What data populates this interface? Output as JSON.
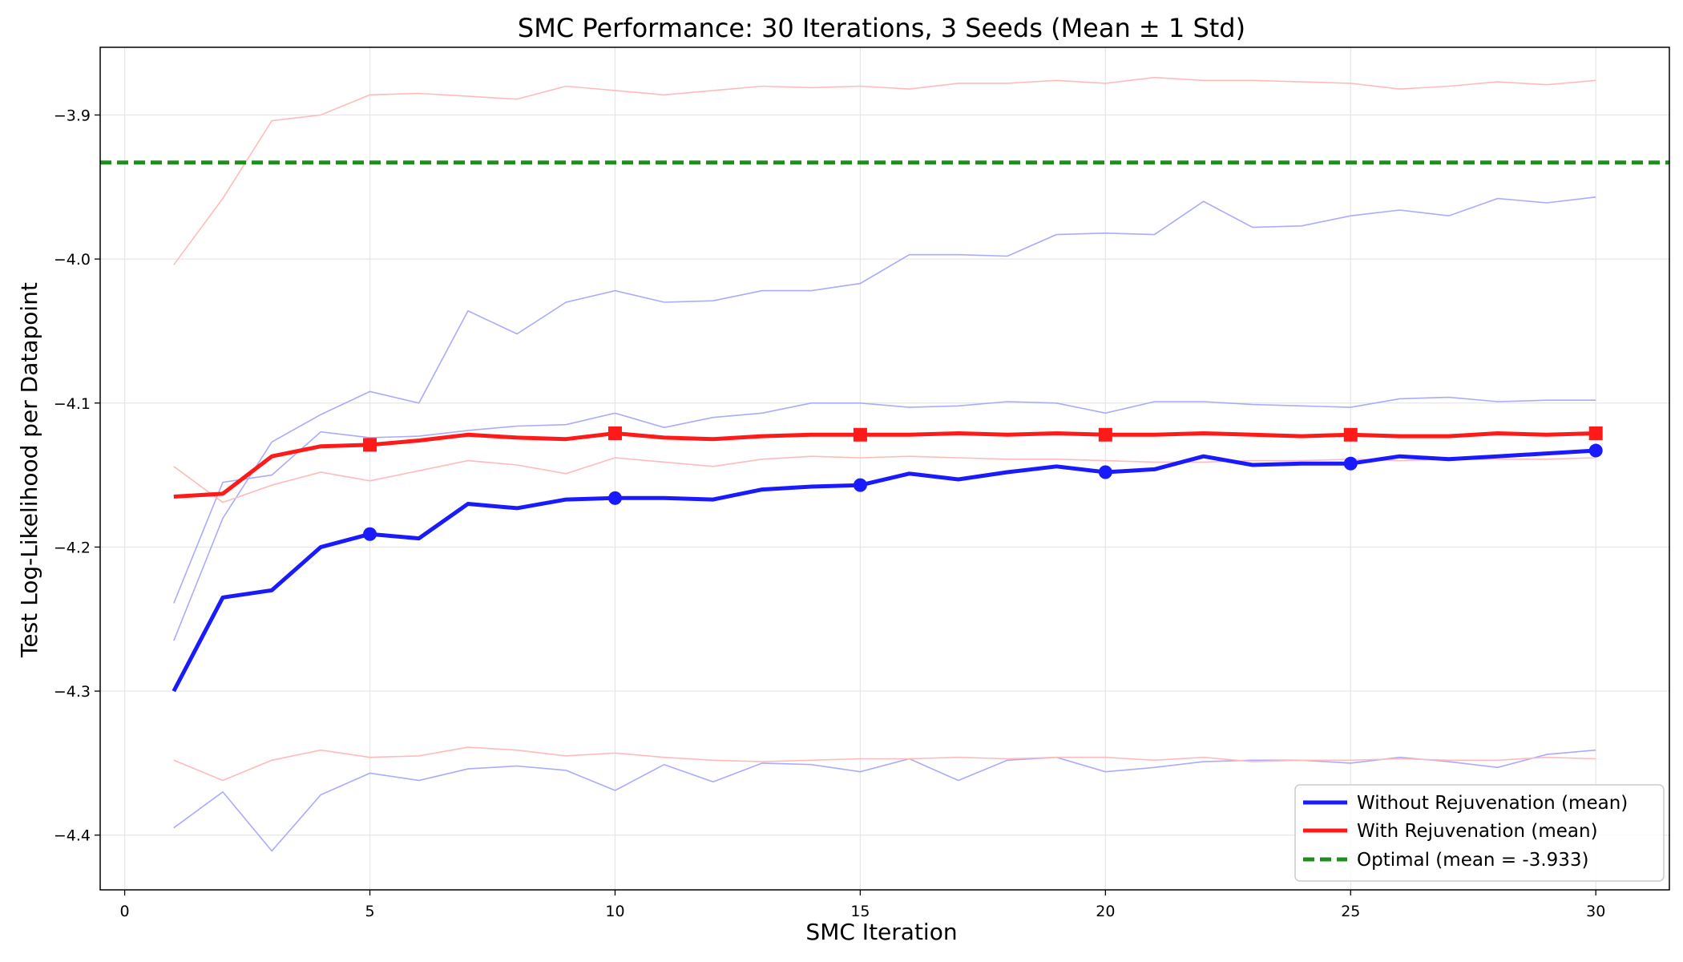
{
  "chart_data": {
    "type": "line",
    "title": "SMC Performance: 30 Iterations, 3 Seeds (Mean ± 1 Std)",
    "xlabel": "SMC Iteration",
    "ylabel": "Test Log-Likelihood per Datapoint",
    "xlim": [
      -0.5,
      31.5
    ],
    "ylim": [
      -4.438,
      -3.853
    ],
    "xticks": [
      0,
      5,
      10,
      15,
      20,
      25,
      30
    ],
    "xtick_labels": [
      "0",
      "5",
      "10",
      "15",
      "20",
      "25",
      "30"
    ],
    "yticks": [
      -4.4,
      -4.3,
      -4.2,
      -4.1,
      -4.0,
      -3.9
    ],
    "ytick_labels": [
      "−4.4",
      "−4.3",
      "−4.2",
      "−4.1",
      "−4.0",
      "−3.9"
    ],
    "grid": true,
    "legend_position": "lower-right",
    "x": [
      1,
      2,
      3,
      4,
      5,
      6,
      7,
      8,
      9,
      10,
      11,
      12,
      13,
      14,
      15,
      16,
      17,
      18,
      19,
      20,
      21,
      22,
      23,
      24,
      25,
      26,
      27,
      28,
      29,
      30
    ],
    "series": [
      {
        "name": "Without Rejuvenation (mean)",
        "color": "#1a1aff",
        "style": "solid",
        "values": [
          -4.3,
          -4.235,
          -4.23,
          -4.2,
          -4.191,
          -4.194,
          -4.17,
          -4.173,
          -4.167,
          -4.166,
          -4.166,
          -4.167,
          -4.16,
          -4.158,
          -4.157,
          -4.149,
          -4.153,
          -4.148,
          -4.144,
          -4.148,
          -4.146,
          -4.137,
          -4.143,
          -4.142,
          -4.142,
          -4.137,
          -4.139,
          -4.137,
          -4.135,
          -4.133
        ],
        "markers_every": 5,
        "marker": "circle"
      },
      {
        "name": "With Rejuvenation (mean)",
        "color": "#ff1a1a",
        "style": "solid",
        "values": [
          -4.165,
          -4.163,
          -4.137,
          -4.13,
          -4.129,
          -4.126,
          -4.122,
          -4.124,
          -4.125,
          -4.121,
          -4.124,
          -4.125,
          -4.123,
          -4.122,
          -4.122,
          -4.122,
          -4.121,
          -4.122,
          -4.121,
          -4.122,
          -4.122,
          -4.121,
          -4.122,
          -4.123,
          -4.122,
          -4.123,
          -4.123,
          -4.121,
          -4.122,
          -4.121
        ],
        "markers_every": 5,
        "marker": "square"
      }
    ],
    "bands": [
      {
        "series": "Without Rejuvenation (mean)",
        "color": "#aaaaff",
        "seeds": [
          [
            -4.239,
            -4.155,
            -4.15,
            -4.12,
            -4.124,
            -4.123,
            -4.119,
            -4.116,
            -4.115,
            -4.107,
            -4.117,
            -4.11,
            -4.107,
            -4.1,
            -4.1,
            -4.103,
            -4.102,
            -4.099,
            -4.1,
            -4.107,
            -4.099,
            -4.099,
            -4.101,
            -4.102,
            -4.103,
            -4.097,
            -4.096,
            -4.099,
            -4.098,
            -4.098
          ],
          [
            -4.265,
            -4.18,
            -4.127,
            -4.108,
            -4.092,
            -4.1,
            -4.036,
            -4.052,
            -4.03,
            -4.022,
            -4.03,
            -4.029,
            -4.022,
            -4.022,
            -4.017,
            -3.997,
            -3.997,
            -3.998,
            -3.983,
            -3.982,
            -3.983,
            -3.96,
            -3.978,
            -3.977,
            -3.97,
            -3.966,
            -3.97,
            -3.958,
            -3.961,
            -3.957
          ],
          [
            -4.395,
            -4.37,
            -4.411,
            -4.372,
            -4.357,
            -4.362,
            -4.354,
            -4.352,
            -4.355,
            -4.369,
            -4.351,
            -4.363,
            -4.35,
            -4.351,
            -4.356,
            -4.347,
            -4.362,
            -4.348,
            -4.346,
            -4.356,
            -4.353,
            -4.349,
            -4.348,
            -4.348,
            -4.35,
            -4.346,
            -4.349,
            -4.353,
            -4.344,
            -4.341
          ]
        ]
      },
      {
        "series": "With Rejuvenation (mean)",
        "color": "#ffbbbb",
        "seeds": [
          [
            -4.004,
            -3.958,
            -3.904,
            -3.9,
            -3.886,
            -3.885,
            -3.887,
            -3.889,
            -3.88,
            -3.883,
            -3.886,
            -3.883,
            -3.88,
            -3.881,
            -3.88,
            -3.882,
            -3.878,
            -3.878,
            -3.876,
            -3.878,
            -3.874,
            -3.876,
            -3.876,
            -3.877,
            -3.878,
            -3.882,
            -3.88,
            -3.877,
            -3.879,
            -3.876
          ],
          [
            -4.144,
            -4.169,
            -4.157,
            -4.148,
            -4.154,
            -4.147,
            -4.14,
            -4.143,
            -4.149,
            -4.138,
            -4.141,
            -4.144,
            -4.139,
            -4.137,
            -4.138,
            -4.137,
            -4.138,
            -4.139,
            -4.139,
            -4.14,
            -4.141,
            -4.141,
            -4.14,
            -4.14,
            -4.139,
            -4.14,
            -4.139,
            -4.139,
            -4.139,
            -4.138
          ],
          [
            -4.348,
            -4.362,
            -4.348,
            -4.341,
            -4.346,
            -4.345,
            -4.339,
            -4.341,
            -4.345,
            -4.343,
            -4.346,
            -4.348,
            -4.349,
            -4.348,
            -4.347,
            -4.347,
            -4.346,
            -4.347,
            -4.346,
            -4.346,
            -4.348,
            -4.346,
            -4.349,
            -4.348,
            -4.348,
            -4.347,
            -4.348,
            -4.348,
            -4.346,
            -4.347
          ]
        ]
      }
    ],
    "reference_line": {
      "name": "Optimal (mean = -3.933)",
      "value": -3.933,
      "color": "#228b22",
      "style": "dashed"
    }
  }
}
